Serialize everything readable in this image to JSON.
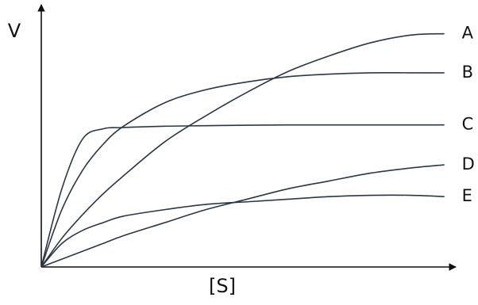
{
  "chart_data": {
    "type": "line",
    "x_label": "[S]",
    "y_label": "V",
    "x": [
      0,
      0.5,
      1,
      1.5,
      2,
      3,
      4,
      5,
      6,
      7,
      8,
      9,
      9.8
    ],
    "xlim": [
      0,
      10
    ],
    "ylim": [
      0,
      10
    ],
    "series": [
      {
        "name": "A",
        "color": "#2a3846",
        "values": [
          0,
          1.1,
          2.0,
          2.8,
          3.5,
          4.8,
          5.8,
          6.7,
          7.5,
          8.1,
          8.6,
          8.9,
          8.95
        ]
      },
      {
        "name": "B",
        "color": "#2a3846",
        "values": [
          0,
          2.2,
          3.7,
          4.7,
          5.4,
          6.3,
          6.8,
          7.1,
          7.3,
          7.4,
          7.45,
          7.45,
          7.45
        ]
      },
      {
        "name": "C",
        "color": "#2a3846",
        "values": [
          0,
          3.0,
          4.9,
          5.3,
          5.35,
          5.4,
          5.42,
          5.44,
          5.45,
          5.45,
          5.45,
          5.45,
          5.45
        ]
      },
      {
        "name": "D",
        "color": "#2a3846",
        "values": [
          0,
          0.3,
          0.6,
          0.9,
          1.2,
          1.7,
          2.2,
          2.6,
          3.0,
          3.3,
          3.6,
          3.8,
          3.92
        ]
      },
      {
        "name": "E",
        "color": "#2a3846",
        "values": [
          0,
          0.9,
          1.4,
          1.7,
          1.95,
          2.2,
          2.4,
          2.5,
          2.6,
          2.7,
          2.75,
          2.75,
          2.7
        ]
      }
    ]
  }
}
